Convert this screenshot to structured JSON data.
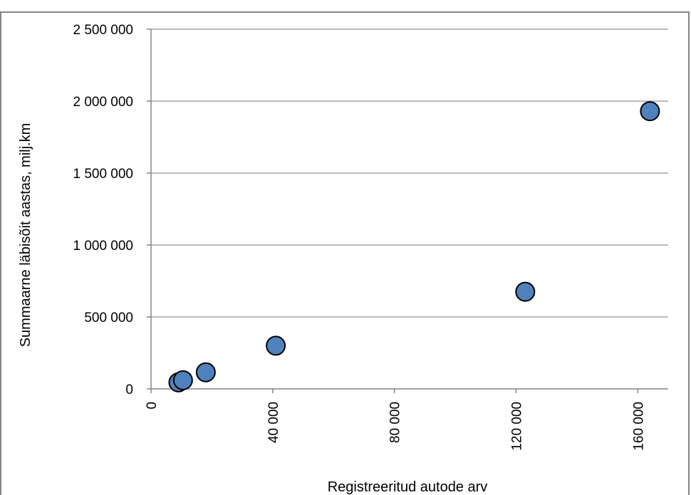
{
  "chart_data": {
    "type": "scatter",
    "title": "",
    "xlabel": "Registreeritud autode arv",
    "ylabel": "Summaarne läbisõit aastas,  milj.km",
    "xlim": [
      0,
      170000
    ],
    "ylim": [
      0,
      2500000
    ],
    "x_ticks": [
      0,
      40000,
      80000,
      120000,
      160000
    ],
    "x_tick_labels": [
      "0",
      "40 000",
      "80 000",
      "120 000",
      "160 000"
    ],
    "y_ticks": [
      0,
      500000,
      1000000,
      1500000,
      2000000,
      2500000
    ],
    "y_tick_labels": [
      "0",
      "500 000",
      "1 000 000",
      "1 500 000",
      "2 000 000",
      "2 500 000"
    ],
    "grid": "horizontal",
    "legend": "none",
    "series": [
      {
        "points": [
          {
            "x": 9000,
            "y": 45000
          },
          {
            "x": 10500,
            "y": 60000
          },
          {
            "x": 18000,
            "y": 115000
          },
          {
            "x": 41000,
            "y": 300000
          },
          {
            "x": 123000,
            "y": 675000
          },
          {
            "x": 164000,
            "y": 1930000
          }
        ]
      }
    ],
    "colors": {
      "marker_fill": "#4f81bd",
      "marker_stroke": "#000000",
      "grid": "#a6a6a6",
      "axis": "#868686",
      "frame": "#868686"
    }
  }
}
